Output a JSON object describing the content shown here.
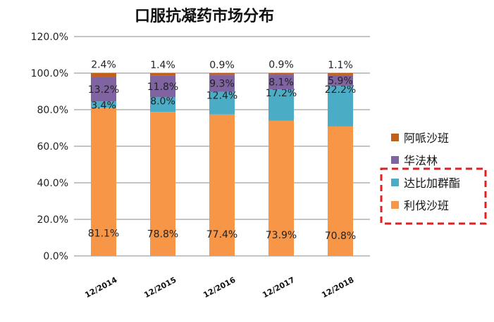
{
  "chart_data": {
    "type": "bar",
    "stacked": true,
    "title": "口服抗凝药市场分布",
    "categories": [
      "12/2014",
      "12/2015",
      "12/2016",
      "12/2017",
      "12/2018"
    ],
    "series": [
      {
        "name": "利伐沙班",
        "color": "#F79646",
        "values": [
          81.1,
          78.8,
          77.4,
          73.9,
          70.8
        ],
        "labels": [
          "81.1%",
          "78.8%",
          "77.4%",
          "73.9%",
          "70.8%"
        ]
      },
      {
        "name": "达比加群酯",
        "color": "#4BACC6",
        "values": [
          3.4,
          8.0,
          12.4,
          17.2,
          22.2
        ],
        "labels": [
          "3.4%",
          "8.0%",
          "12.4%",
          "17.2%",
          "22.2%"
        ]
      },
      {
        "name": "华法林",
        "color": "#8064A2",
        "values": [
          13.2,
          11.8,
          9.3,
          8.1,
          5.9
        ],
        "labels": [
          "13.2%",
          "11.8%",
          "9.3%",
          "8.1%",
          "5.9%"
        ]
      },
      {
        "name": "阿哌沙班",
        "color": "#C0601A",
        "values": [
          2.4,
          1.4,
          0.9,
          0.9,
          1.1
        ],
        "labels": [
          "2.4%",
          "1.4%",
          "0.9%",
          "0.9%",
          "1.1%"
        ]
      }
    ],
    "ylim": [
      0,
      120
    ],
    "yticks": [
      "0.0%",
      "20.0%",
      "40.0%",
      "60.0%",
      "80.0%",
      "100.0%",
      "120.0%"
    ],
    "grid": true,
    "legend": {
      "position": "right",
      "order": [
        "阿哌沙班",
        "华法林",
        "达比加群酯",
        "利伐沙班"
      ],
      "highlight": [
        "达比加群酯",
        "利伐沙班"
      ],
      "highlight_color": "#E02020"
    }
  }
}
